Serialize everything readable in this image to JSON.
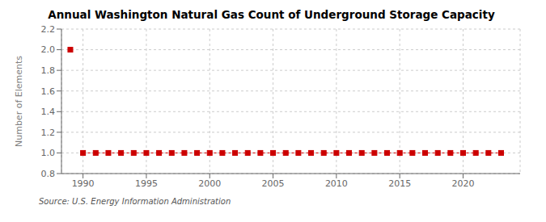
{
  "chart_data": {
    "type": "line",
    "title": "Annual Washington Natural Gas Count of Underground Storage Capacity",
    "ylabel": "Number of Elements",
    "annotations": [
      "Source: U.S. Energy Information Administration"
    ],
    "x": [
      1989,
      1990,
      1991,
      1992,
      1993,
      1994,
      1995,
      1996,
      1997,
      1998,
      1999,
      2000,
      2001,
      2002,
      2003,
      2004,
      2005,
      2006,
      2007,
      2008,
      2009,
      2010,
      2011,
      2012,
      2013,
      2014,
      2015,
      2016,
      2017,
      2018,
      2019,
      2020,
      2021,
      2022,
      2023
    ],
    "series": [
      {
        "color": "#cc0000",
        "marker": "square",
        "line_style": "none",
        "values": [
          2,
          null,
          null,
          null,
          null,
          null,
          null,
          null,
          null,
          null,
          null,
          null,
          null,
          null,
          null,
          null,
          null,
          null,
          null,
          null,
          null,
          null,
          null,
          null,
          null,
          null,
          null,
          null,
          null,
          null,
          null,
          null,
          null,
          null,
          null
        ]
      },
      {
        "color": "#cc0000",
        "marker": "square",
        "line_style": "dashed",
        "values": [
          null,
          1,
          1,
          1,
          1,
          1,
          1,
          1,
          1,
          1,
          1,
          1,
          1,
          1,
          1,
          1,
          1,
          1,
          1,
          1,
          1,
          1,
          1,
          1,
          1,
          1,
          1,
          1,
          1,
          1,
          1,
          1,
          1,
          1,
          1
        ]
      }
    ],
    "xlim": [
      1988.3,
      2024.5
    ],
    "xticks": [
      1990,
      1995,
      2000,
      2005,
      2010,
      2015,
      2020
    ],
    "ylim": [
      0.8,
      2.2
    ],
    "yticks": [
      0.8,
      {
        "value": 1,
        "label": "1.0"
      },
      1.2,
      1.4,
      1.6,
      1.8,
      {
        "value": 2,
        "label": "2.0"
      },
      2.2
    ],
    "grid": true
  }
}
